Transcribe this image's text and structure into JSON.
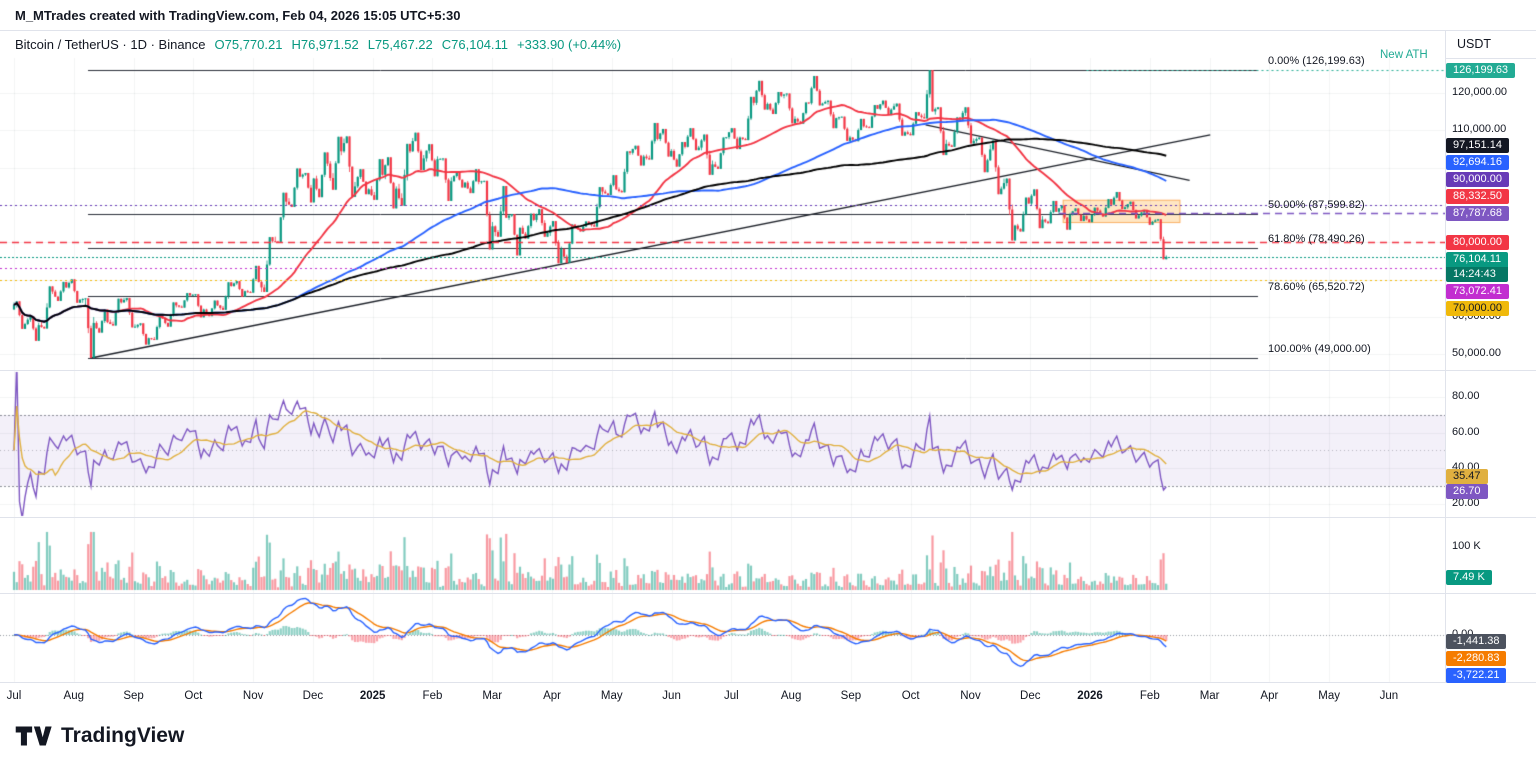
{
  "header": {
    "note": "M_MTrades created with TradingView.com, Feb 04, 2026 15:05 UTC+5:30",
    "symbol_line": "Bitcoin / TetherUS · 1D · Binance",
    "ohlc_parts": [
      "O75,770.21",
      "H76,971.52",
      "L75,467.22",
      "C76,104.11"
    ],
    "change": "+333.90 (+0.44%)"
  },
  "price_scale": {
    "currency": "USDT"
  },
  "footer": {
    "brand": "TradingView"
  },
  "chart_data": {
    "type": "candlestick",
    "title": "Bitcoin / TetherUS 1D Binance",
    "current_price": 76104.11,
    "current_price_label": "76,104.11",
    "countdown": "14:24:43",
    "new_ath_label": "New ATH",
    "x_axis_labels": [
      {
        "t": "Jul"
      },
      {
        "t": "Aug"
      },
      {
        "t": "Sep"
      },
      {
        "t": "Oct"
      },
      {
        "t": "Nov"
      },
      {
        "t": "Dec"
      },
      {
        "t": "2025",
        "bold": true
      },
      {
        "t": "Feb"
      },
      {
        "t": "Mar"
      },
      {
        "t": "Apr"
      },
      {
        "t": "May"
      },
      {
        "t": "Jun"
      },
      {
        "t": "Jul"
      },
      {
        "t": "Aug"
      },
      {
        "t": "Sep"
      },
      {
        "t": "Oct"
      },
      {
        "t": "Nov"
      },
      {
        "t": "Dec"
      },
      {
        "t": "2026",
        "bold": true
      },
      {
        "t": "Feb"
      },
      {
        "t": "Mar"
      },
      {
        "t": "Apr"
      },
      {
        "t": "May"
      },
      {
        "t": "Jun"
      }
    ],
    "price_pane": {
      "up_color": "#089981",
      "down_color": "#f23645",
      "axis_labels": [
        {
          "text": "120,000.00",
          "price": 120000
        },
        {
          "text": "110,000.00",
          "price": 110000
        },
        {
          "text": "60,000.00",
          "price": 60000
        },
        {
          "text": "50,000.00",
          "price": 50000
        }
      ],
      "weekly_candles": [
        [
          62000,
          64200,
          56800,
          58100
        ],
        [
          58100,
          60200,
          53600,
          57800
        ],
        [
          57800,
          68200,
          56900,
          66800
        ],
        [
          66800,
          69400,
          64300,
          67900
        ],
        [
          67900,
          70100,
          63800,
          64600
        ],
        [
          64600,
          65000,
          49000,
          58400
        ],
        [
          58400,
          62000,
          55800,
          58600
        ],
        [
          58600,
          64900,
          57700,
          63900
        ],
        [
          63900,
          65100,
          57200,
          57400
        ],
        [
          57400,
          58300,
          52600,
          54300
        ],
        [
          54300,
          60700,
          53900,
          59600
        ],
        [
          59600,
          63900,
          57400,
          63100
        ],
        [
          63100,
          66400,
          62500,
          65800
        ],
        [
          65800,
          66100,
          59900,
          62000
        ],
        [
          62000,
          64400,
          60200,
          63100
        ],
        [
          63100,
          69300,
          61900,
          68300
        ],
        [
          68300,
          69600,
          65400,
          66900
        ],
        [
          66900,
          73700,
          66500,
          69400
        ],
        [
          69400,
          81400,
          66700,
          80300
        ],
        [
          80300,
          93300,
          80100,
          90900
        ],
        [
          90900,
          99800,
          89500,
          97600
        ],
        [
          97600,
          98600,
          90700,
          97100
        ],
        [
          97100,
          104100,
          92100,
          101100
        ],
        [
          101100,
          108300,
          94100,
          104400
        ],
        [
          104400,
          108400,
          92200,
          95000
        ],
        [
          95000,
          99600,
          92900,
          94200
        ],
        [
          94200,
          102300,
          91400,
          98100
        ],
        [
          98100,
          102800,
          89100,
          94400
        ],
        [
          94400,
          106400,
          89800,
          104400
        ],
        [
          104400,
          109400,
          99400,
          102500
        ],
        [
          102500,
          106300,
          97700,
          102300
        ],
        [
          102300,
          102500,
          91100,
          96400
        ],
        [
          96400,
          98900,
          94700,
          96000
        ],
        [
          96000,
          99600,
          93200,
          96200
        ],
        [
          96200,
          96500,
          78100,
          84300
        ],
        [
          84300,
          95100,
          81500,
          86600
        ],
        [
          86600,
          87600,
          76500,
          83900
        ],
        [
          83900,
          87700,
          81000,
          86000
        ],
        [
          86000,
          88900,
          81500,
          82500
        ],
        [
          82500,
          85700,
          74400,
          78200
        ],
        [
          78200,
          84800,
          74500,
          84400
        ],
        [
          84400,
          85600,
          82900,
          85100
        ],
        [
          85100,
          94800,
          84200,
          93600
        ],
        [
          93600,
          98000,
          92700,
          94200
        ],
        [
          94200,
          104400,
          93400,
          104000
        ],
        [
          104000,
          105900,
          100600,
          103000
        ],
        [
          103000,
          112000,
          102200,
          107700
        ],
        [
          107700,
          110400,
          103000,
          104500
        ],
        [
          104500,
          106900,
          100300,
          105600
        ],
        [
          105600,
          110600,
          104700,
          105400
        ],
        [
          105400,
          108900,
          98100,
          100900
        ],
        [
          100900,
          108100,
          99700,
          108200
        ],
        [
          108200,
          110600,
          105000,
          108100
        ],
        [
          108100,
          119000,
          107400,
          117400
        ],
        [
          117400,
          123300,
          115600,
          117100
        ],
        [
          117100,
          120300,
          114400,
          119300
        ],
        [
          119300,
          119900,
          111900,
          113100
        ],
        [
          113100,
          117500,
          111800,
          117300
        ],
        [
          117300,
          124600,
          116700,
          117200
        ],
        [
          117200,
          118000,
          110600,
          113300
        ],
        [
          113300,
          113700,
          107200,
          108100
        ],
        [
          108100,
          113100,
          107100,
          111100
        ],
        [
          111100,
          116800,
          110700,
          115800
        ],
        [
          115800,
          118000,
          114100,
          115600
        ],
        [
          115600,
          117200,
          108600,
          109500
        ],
        [
          109500,
          114900,
          108700,
          114000
        ],
        [
          114000,
          126199.63,
          113200,
          115100
        ],
        [
          115100,
          116200,
          103400,
          106400
        ],
        [
          106400,
          113500,
          105600,
          112900
        ],
        [
          112900,
          116200,
          106500,
          107200
        ],
        [
          107200,
          108100,
          98800,
          102000
        ],
        [
          102000,
          107300,
          92900,
          94400
        ],
        [
          94400,
          97100,
          80500,
          84500
        ],
        [
          84500,
          92000,
          82900,
          90400
        ],
        [
          90400,
          94200,
          83800,
          86100
        ],
        [
          86100,
          91100,
          85100,
          88200
        ],
        [
          88200,
          89900,
          83400,
          87400
        ],
        [
          87400,
          89100,
          85700,
          87100
        ],
        [
          87100,
          89300,
          85400,
          88500
        ],
        [
          88500,
          91600,
          86900,
          90100
        ],
        [
          90100,
          93500,
          88900,
          89400
        ],
        [
          89400,
          90900,
          86400,
          87200
        ],
        [
          87200,
          88700,
          84700,
          85500
        ],
        [
          85500,
          86200,
          75467.22,
          76104.11
        ]
      ],
      "ma_lines": [
        {
          "name": "MA fast",
          "color": "#f23645",
          "window": 35,
          "last_value": "88,332.50"
        },
        {
          "name": "MA mid",
          "color": "#2962ff",
          "window": 100,
          "last_value": "92,694.16"
        },
        {
          "name": "MA slow",
          "color": "#000000",
          "window": 160,
          "last_value": "97,151.14"
        }
      ],
      "fib_levels": [
        {
          "label": "0.00% (126,199.63)",
          "price": 126199.63
        },
        {
          "label": "50.00% (87,599.82)",
          "price": 87599.82
        },
        {
          "label": "61.80% (78,490.26)",
          "price": 78490.26
        },
        {
          "label": "78.60% (65,520.72)",
          "price": 65520.72
        },
        {
          "label": "100.00% (49,000.00)",
          "price": 49000
        }
      ],
      "h_lines": [
        {
          "price": 126199.63,
          "color": "#22ab94",
          "style": "dotted",
          "from_week": 78,
          "badge": "126,199.63",
          "badge_bg": "#22ab94"
        },
        {
          "price": 90000,
          "color": "#673ab7",
          "style": "dotted",
          "badge": "90,000.00",
          "badge_bg": "#673ab7"
        },
        {
          "price": 87787.68,
          "color": "#7e57c2",
          "style": "dashed",
          "from_week": 76,
          "anchor": true,
          "badge": "87,787.68",
          "badge_bg": "#7e57c2"
        },
        {
          "price": 80000,
          "color": "#f23645",
          "style": "dashed",
          "badge": "80,000.00",
          "badge_bg": "#f23645"
        },
        {
          "price": 73072.41,
          "color": "#c22ed0",
          "style": "dotted",
          "badge": "73,072.41",
          "badge_bg": "#c22ed0"
        },
        {
          "price": 70000,
          "color": "#f0b90b",
          "style": "dotted",
          "badge": "70,000.00",
          "badge_bg": "#f0b90b",
          "badge_fg": "#131722"
        }
      ],
      "trendlines": [
        {
          "week1": 5.6,
          "price1": 49000,
          "week2": 87,
          "price2": 108800
        },
        {
          "week1": 66.3,
          "price1": 111500,
          "week2": 85.5,
          "price2": 96600
        }
      ],
      "supply_zone": {
        "week1": 76.3,
        "week2": 84.8,
        "price_top": 91300,
        "price_bottom": 85300,
        "fill": "rgba(255,167,38,0.28)",
        "stroke": "rgba(245,124,0,0.55)"
      }
    },
    "rsi_pane": {
      "axis_labels": [
        {
          "text": "80.00",
          "value": 80
        },
        {
          "text": "60.00",
          "value": 60
        },
        {
          "text": "40.00",
          "value": 40
        },
        {
          "text": "20.00",
          "value": 20
        }
      ],
      "upper_band": 70,
      "lower_band": 30,
      "line_color": "#7e57c2",
      "ma_color": "#e0b040",
      "badges": [
        {
          "text": "35.47",
          "value": 35.47,
          "bg": "#e0b040",
          "fg": "#131722"
        },
        {
          "text": "26.70",
          "value": 26.7,
          "bg": "#7e57c2",
          "fg": "#ffffff"
        }
      ]
    },
    "volume_pane": {
      "axis_labels": [
        {
          "text": "100 K",
          "value": 100
        }
      ],
      "badge": {
        "text": "7.49 K",
        "bg": "#089981"
      }
    },
    "macd_pane": {
      "axis_labels": [
        {
          "text": "0.00",
          "value": 0
        }
      ],
      "macd_color": "#2962ff",
      "signal_color": "#f57c00",
      "badges": [
        {
          "text": "-1,441.38",
          "value": -1441.38,
          "bg": "#4c525e"
        },
        {
          "text": "-2,280.83",
          "value": -2280.83,
          "bg": "#f57c00"
        },
        {
          "text": "-3,722.21",
          "value": -3722.21,
          "bg": "#2962ff"
        }
      ]
    }
  }
}
